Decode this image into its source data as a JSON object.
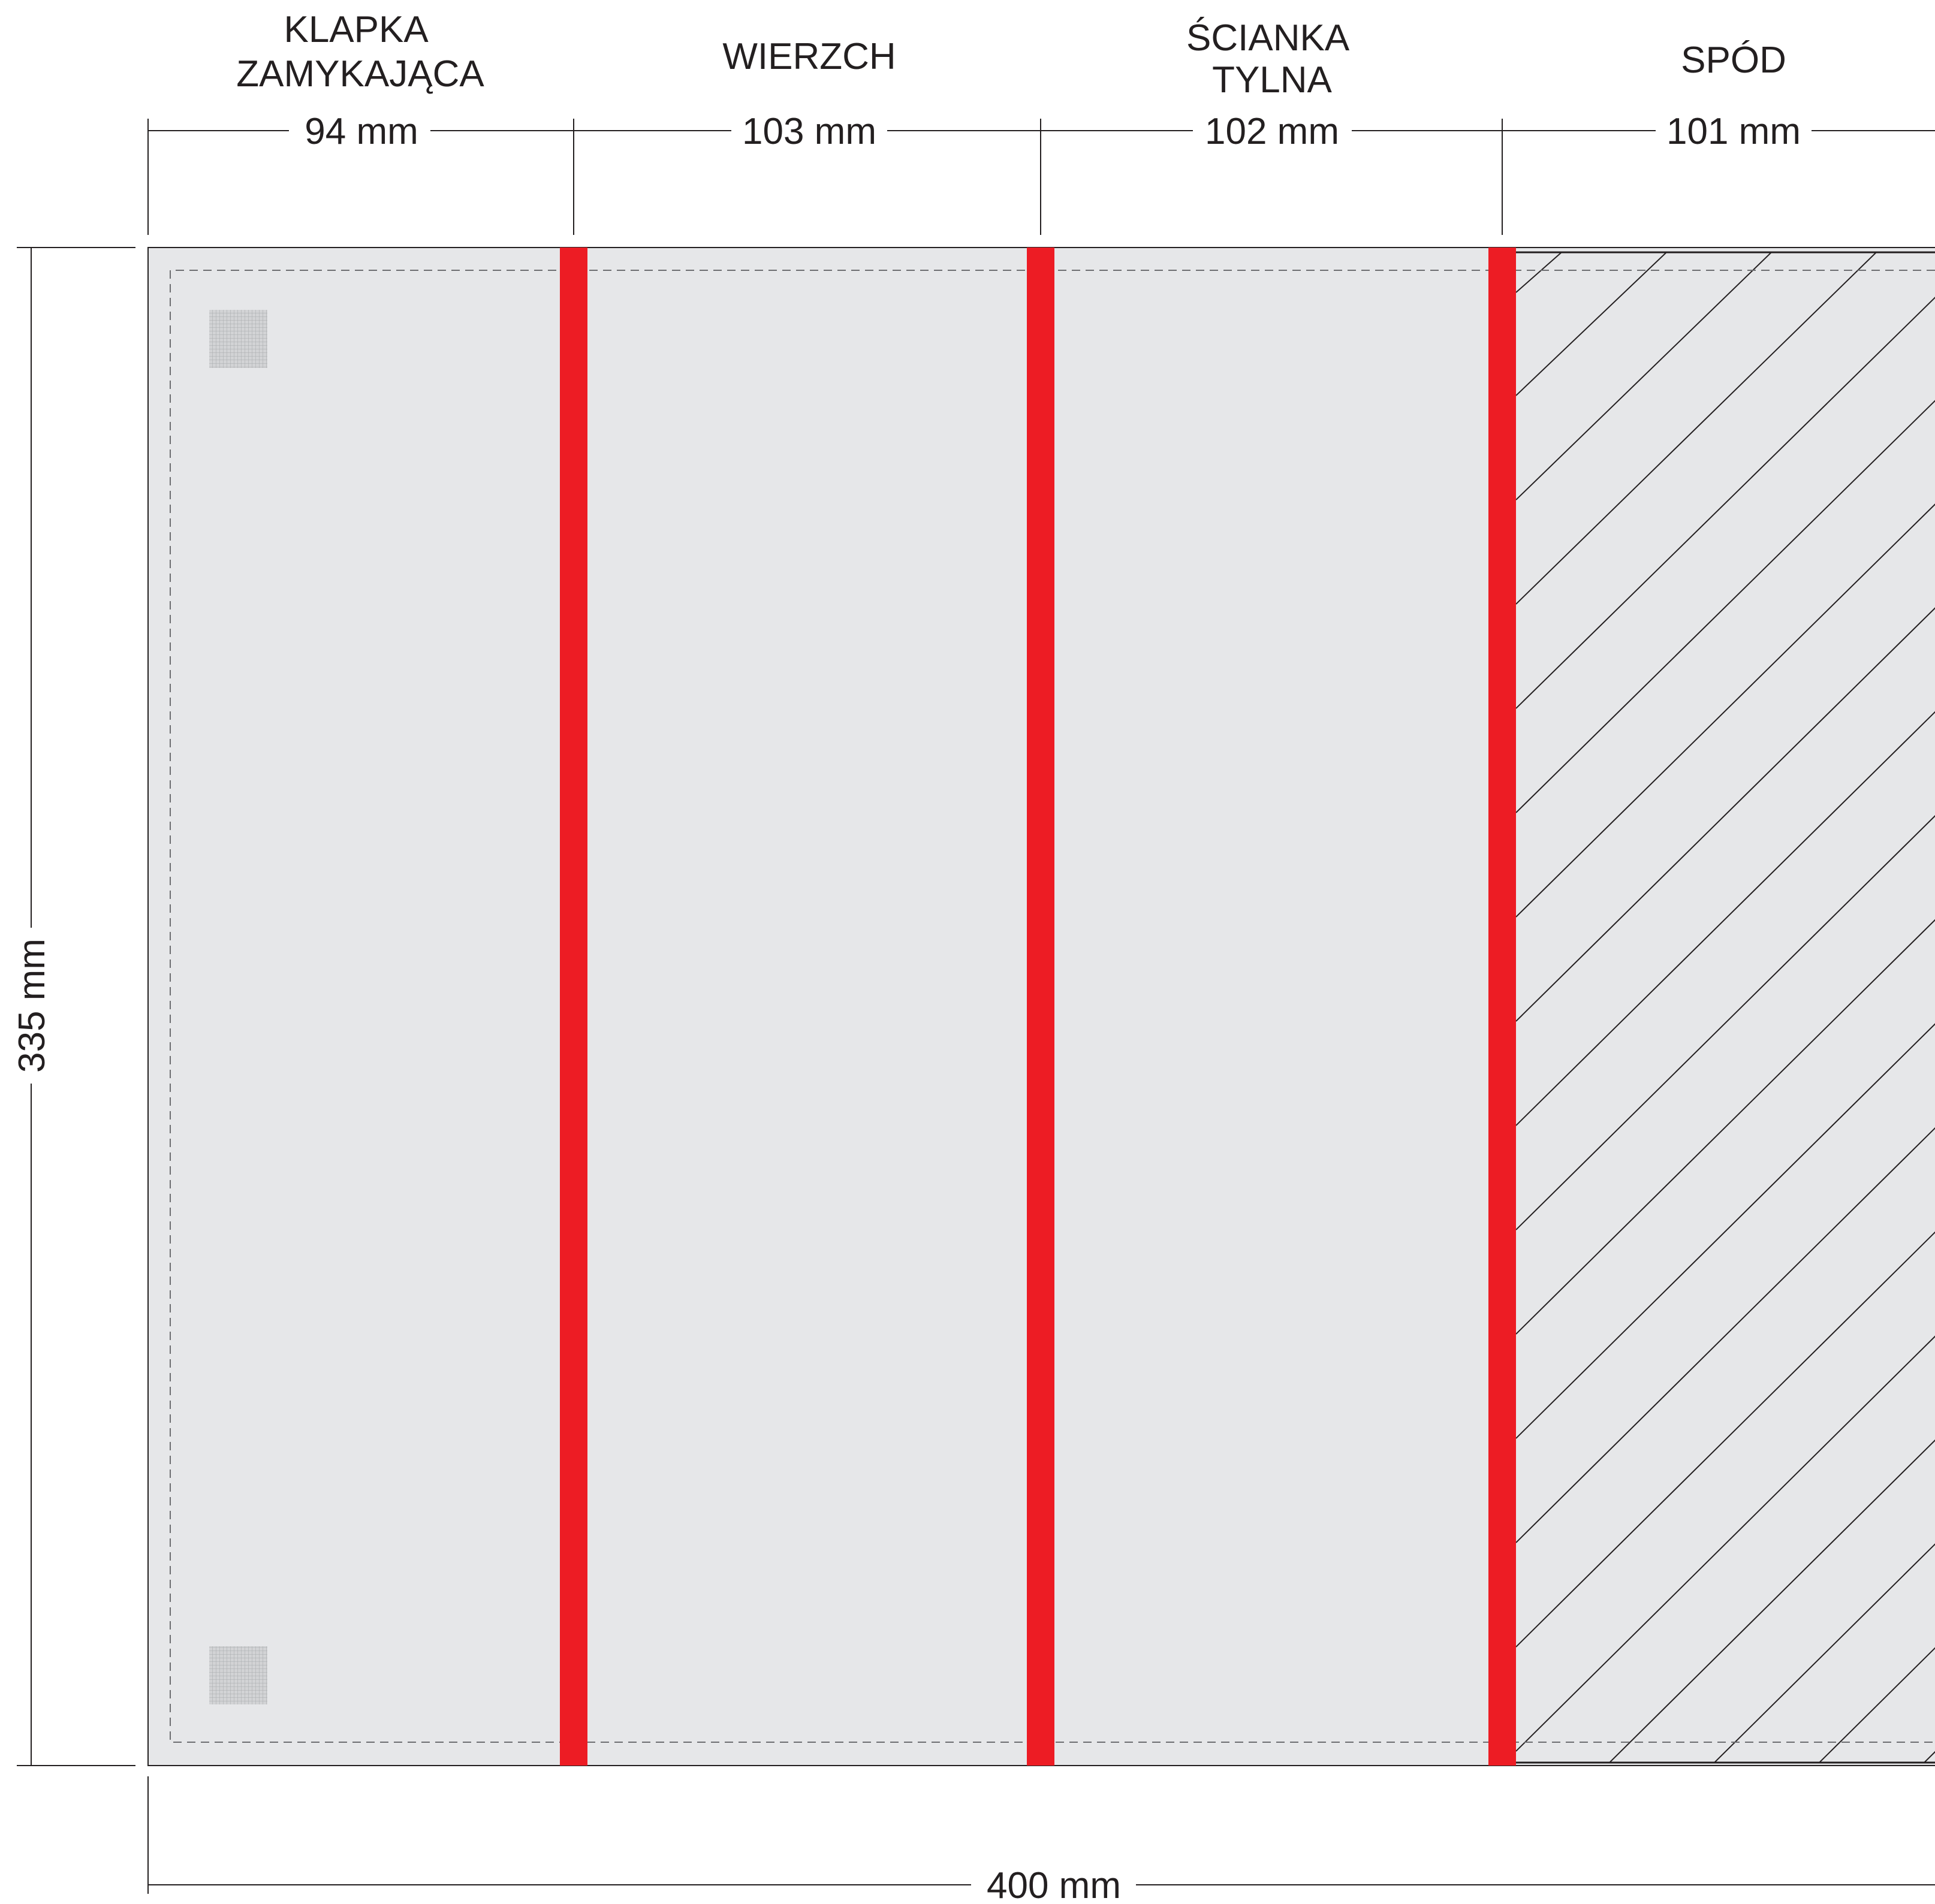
{
  "sections": [
    {
      "lines": [
        "KLAPKA",
        "ZAMYKAJĄCA"
      ],
      "width": "94 mm"
    },
    {
      "lines": [
        "WIERZCH"
      ],
      "width": "103 mm"
    },
    {
      "lines": [
        "ŚCIANKA",
        "TYLNA"
      ],
      "width": "102 mm"
    },
    {
      "lines": [
        "SPÓD"
      ],
      "width": "101 mm"
    }
  ],
  "height_label": "335 mm",
  "total_width_label": "400 mm",
  "colors": {
    "panel": "#e6e7e9",
    "fold_line": "#ed1c24",
    "stroke": "#231f20",
    "text": "#231f20"
  }
}
